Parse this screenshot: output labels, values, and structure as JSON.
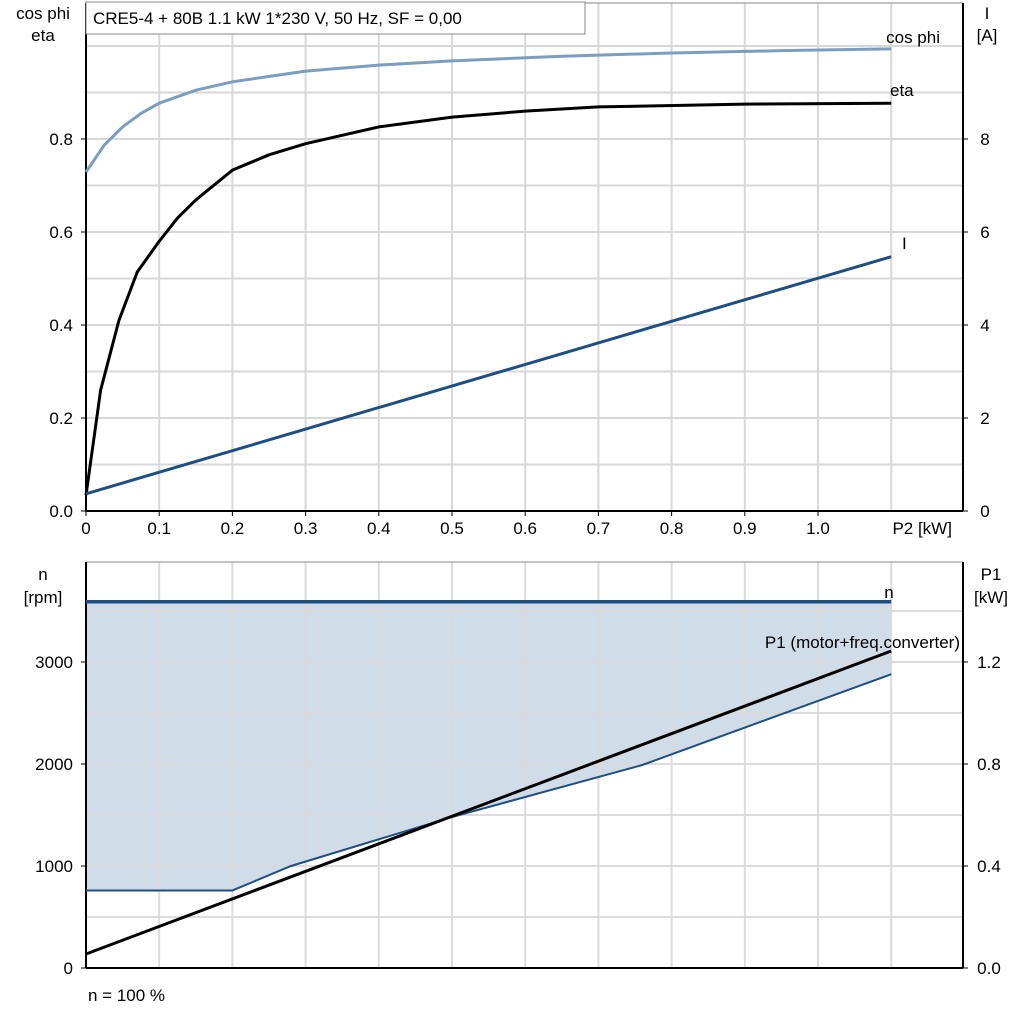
{
  "chart_data": [
    {
      "type": "line",
      "title": "CRE5-4 + 80B   1.1 kW   1*230 V, 50 Hz, SF = 0,00",
      "xlabel": "P2 [kW]",
      "ylabel_left": [
        "cos phi",
        "eta"
      ],
      "ylabel_right": [
        "I",
        "[A]"
      ],
      "xlim": [
        0,
        1.2
      ],
      "ylim_left": [
        0,
        1.0925
      ],
      "ylim_right": [
        0,
        10.925
      ],
      "grid": true,
      "x_ticks": [
        "0",
        "0.1",
        "0.2",
        "0.3",
        "0.4",
        "0.5",
        "0.6",
        "0.7",
        "0.8",
        "0.9",
        "1.0"
      ],
      "y_left_ticks": [
        "0.0",
        "0.2",
        "0.4",
        "0.6",
        "0.8"
      ],
      "y_right_ticks": [
        "0",
        "2",
        "4",
        "6",
        "8"
      ],
      "series": [
        {
          "name": "cos phi",
          "axis": "left",
          "color": "#7b9dc2",
          "points": [
            [
              0,
              0.729
            ],
            [
              0.025,
              0.787
            ],
            [
              0.05,
              0.826
            ],
            [
              0.075,
              0.855
            ],
            [
              0.1,
              0.877
            ],
            [
              0.15,
              0.905
            ],
            [
              0.2,
              0.923
            ],
            [
              0.3,
              0.946
            ],
            [
              0.4,
              0.959
            ],
            [
              0.5,
              0.968
            ],
            [
              0.65,
              0.978
            ],
            [
              0.8,
              0.985
            ],
            [
              0.95,
              0.99
            ],
            [
              1.1,
              0.994
            ]
          ]
        },
        {
          "name": "eta",
          "axis": "left",
          "color": "#000000",
          "points": [
            [
              0,
              0.034
            ],
            [
              0.02,
              0.26
            ],
            [
              0.045,
              0.41
            ],
            [
              0.07,
              0.514
            ],
            [
              0.1,
              0.58
            ],
            [
              0.125,
              0.63
            ],
            [
              0.15,
              0.669
            ],
            [
              0.2,
              0.733
            ],
            [
              0.25,
              0.766
            ],
            [
              0.3,
              0.79
            ],
            [
              0.4,
              0.826
            ],
            [
              0.5,
              0.847
            ],
            [
              0.6,
              0.86
            ],
            [
              0.7,
              0.869
            ],
            [
              0.9,
              0.875
            ],
            [
              1.1,
              0.877
            ]
          ]
        },
        {
          "name": "I",
          "axis": "right",
          "color": "#1f4e80",
          "points": [
            [
              0,
              0.37
            ],
            [
              1.1,
              5.47
            ]
          ]
        }
      ]
    },
    {
      "type": "line",
      "xlim": [
        0,
        1.2
      ],
      "ylabel_left": [
        "n",
        "[rpm]"
      ],
      "ylabel_right": [
        "P1",
        "[kW]"
      ],
      "ylim_left": [
        0,
        3980
      ],
      "ylim_right": [
        0,
        1.592
      ],
      "grid": true,
      "y_left_ticks": [
        "0",
        "1000",
        "2000",
        "3000"
      ],
      "y_right_ticks": [
        "0.0",
        "0.4",
        "0.8",
        "1.2"
      ],
      "series": [
        {
          "name": "n",
          "axis": "left",
          "color": "#1f4e80",
          "points": [
            [
              0,
              3590
            ],
            [
              1.1,
              3590
            ]
          ]
        },
        {
          "name": "P1 (motor+freq.converter)",
          "axis": "right",
          "color": "#000000",
          "points": [
            [
              0,
              0.055
            ],
            [
              1.1,
              1.243
            ]
          ]
        },
        {
          "axis": "left",
          "color": "#1f4e80",
          "points": [
            [
              0,
              760
            ],
            [
              0.2,
              760
            ],
            [
              0.28,
              1000
            ],
            [
              0.5,
              1480
            ],
            [
              0.76,
              1990
            ],
            [
              1.1,
              2880
            ]
          ]
        }
      ],
      "fill_color": "#d0dce8",
      "annotation": "n = 100 %"
    }
  ]
}
